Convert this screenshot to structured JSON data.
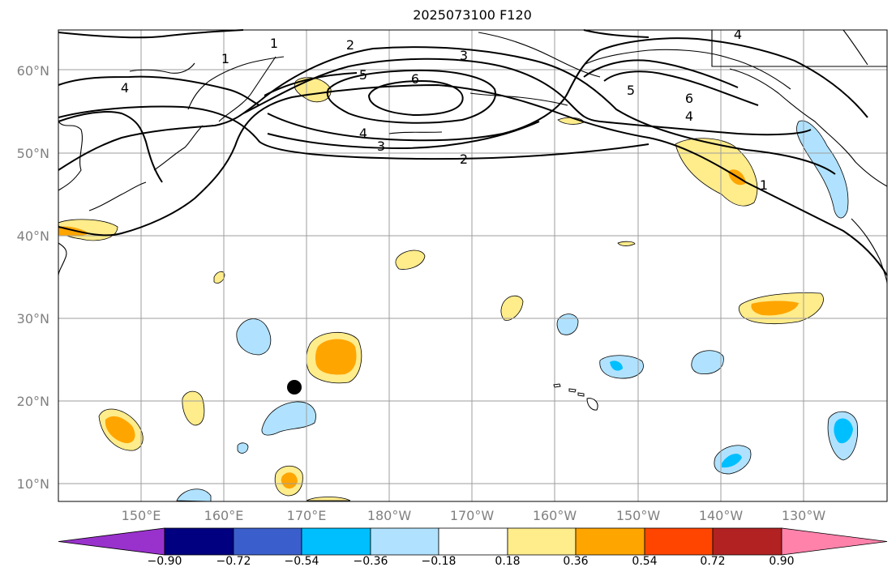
{
  "title": "2025073100 F120",
  "map": {
    "lat_labels": [
      "60°N",
      "50°N",
      "40°N",
      "30°N",
      "20°N",
      "10°N"
    ],
    "lon_labels": [
      "150°E",
      "160°E",
      "170°E",
      "180°W",
      "170°W",
      "160°W",
      "150°W",
      "140°W",
      "130°W"
    ],
    "contour_labels": [
      "1",
      "2",
      "3",
      "4",
      "5",
      "6"
    ],
    "marker": "black-dot"
  },
  "colorbar": {
    "ticks": [
      "−0.90",
      "−0.72",
      "−0.54",
      "−0.36",
      "−0.18",
      "0.18",
      "0.36",
      "0.54",
      "0.72",
      "0.90"
    ],
    "colors": [
      "#9932cc",
      "#000080",
      "#3a5fcd",
      "#00bfff",
      "#b0e2ff",
      "#ffffff",
      "#ffec8b",
      "#ffa500",
      "#ff4500",
      "#b22222",
      "#ff82ab"
    ]
  }
}
